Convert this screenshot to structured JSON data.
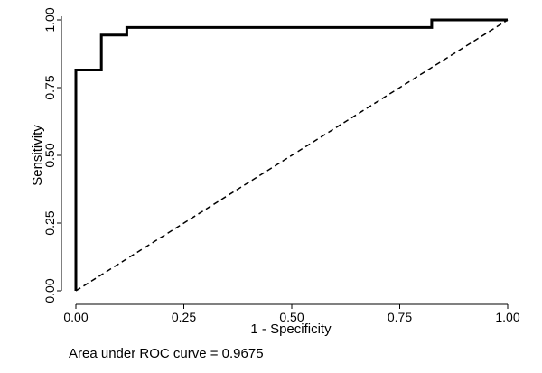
{
  "chart_data": {
    "type": "line",
    "xlabel": "1 - Specificity",
    "ylabel": "Sensitivity",
    "xlim": [
      0,
      1
    ],
    "ylim": [
      0,
      1
    ],
    "x_ticks": [
      "0.00",
      "0.25",
      "0.50",
      "0.75",
      "1.00"
    ],
    "y_ticks": [
      "0.00",
      "0.25",
      "0.50",
      "0.75",
      "1.00"
    ],
    "grid": false,
    "series": [
      {
        "style": "solid",
        "points": [
          [
            0.0,
            0.0
          ],
          [
            0.0,
            0.815
          ],
          [
            0.059,
            0.815
          ],
          [
            0.059,
            0.944
          ],
          [
            0.118,
            0.944
          ],
          [
            0.118,
            0.963
          ],
          [
            0.118,
            0.972
          ],
          [
            0.824,
            0.972
          ],
          [
            0.824,
            1.0
          ],
          [
            1.0,
            1.0
          ]
        ]
      },
      {
        "style": "dashed",
        "points": [
          [
            0,
            0
          ],
          [
            1,
            1
          ]
        ]
      }
    ],
    "caption": "Area under ROC curve = 0.9675"
  }
}
